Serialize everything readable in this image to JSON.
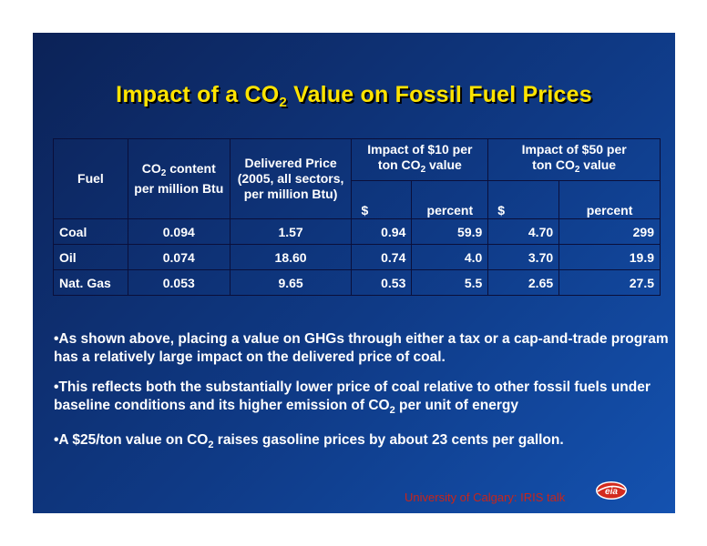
{
  "slide": {
    "title_pre": "Impact of a CO",
    "title_sub": "2",
    "title_post": " Value on Fossil Fuel Prices"
  },
  "table": {
    "headers": {
      "fuel": "Fuel",
      "co2_pre": "CO",
      "co2_sub": "2",
      "co2_post": " content per million Btu",
      "price": "Delivered Price (2005, all sectors, per million Btu)",
      "impact10_line1": "Impact of $10 per",
      "impact10_pre": "ton CO",
      "impact10_sub": "2",
      "impact10_post": " value",
      "impact50_line1": "Impact of $50 per",
      "impact50_pre": "ton CO",
      "impact50_sub": "2",
      "impact50_post": " value",
      "dollar": "$",
      "percent": "percent"
    },
    "rows": [
      {
        "fuel": "Coal",
        "co2": "0.094",
        "price": "1.57",
        "d10": "0.94",
        "p10": "59.9",
        "d50": "4.70",
        "p50": "299"
      },
      {
        "fuel": "Oil",
        "co2": "0.074",
        "price": "18.60",
        "d10": "0.74",
        "p10": "4.0",
        "d50": "3.70",
        "p50": "19.9"
      },
      {
        "fuel": "Nat. Gas",
        "co2": "0.053",
        "price": "9.65",
        "d10": "0.53",
        "p10": "5.5",
        "d50": "2.65",
        "p50": "27.5"
      }
    ]
  },
  "bullets": {
    "b1": "•As shown above, placing a value on GHGs through either a tax or a cap-and-trade program has a relatively large impact on the delivered price of coal.",
    "b2_pre": "•This reflects both the substantially lower price of coal relative to other fossil fuels under baseline conditions and its higher emission of CO",
    "b2_sub": "2",
    "b2_post": " per unit of energy",
    "b3_pre": "•A $25/ton value on CO",
    "b3_sub": "2",
    "b3_post": " raises gasoline prices by about 23 cents per gallon."
  },
  "footer": {
    "text": "University of Calgary: IRIS talk",
    "logo_text": "eia"
  },
  "colors": {
    "title": "#ffe400",
    "footer": "#c8251a",
    "background_start": "#0c2257",
    "background_end": "#1452b0"
  }
}
